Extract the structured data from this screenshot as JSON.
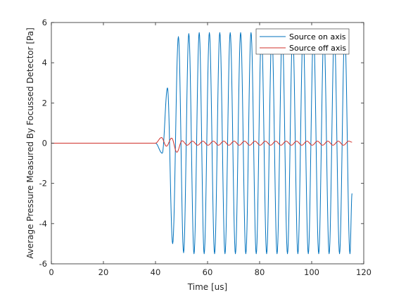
{
  "chart_data": {
    "type": "line",
    "title": "",
    "xlabel": "Time [us]",
    "ylabel": "Average Pressure Measured By Focussed Detector [Pa]",
    "xlim": [
      0,
      120
    ],
    "ylim": [
      -6,
      6
    ],
    "xticks": [
      0,
      20,
      40,
      60,
      80,
      100,
      120
    ],
    "yticks": [
      -6,
      -4,
      -2,
      0,
      2,
      4,
      6
    ],
    "grid": false,
    "legend_location": "top-right",
    "series": [
      {
        "name": "Source on axis",
        "color": "#0072BD",
        "signal": {
          "start_time": 40.0,
          "end_time": 115.5,
          "period": 4.0,
          "peak_times": [
            44.6,
            48.8,
            52.8,
            56.8,
            60.7,
            64.7,
            68.7,
            72.7,
            76.7,
            80.7,
            84.7,
            88.7,
            92.7,
            96.7,
            100.7,
            104.7,
            108.7,
            112.7
          ],
          "peak_values": [
            2.75,
            5.3,
            5.45,
            5.5,
            5.5,
            5.5,
            5.5,
            5.5,
            5.5,
            5.5,
            5.5,
            5.5,
            5.5,
            5.5,
            5.5,
            5.5,
            5.5,
            5.5
          ],
          "trough_times": [
            42.6,
            46.6,
            50.8,
            54.8,
            58.7,
            62.7,
            66.7,
            70.7,
            74.7,
            78.7,
            82.7,
            86.7,
            90.7,
            94.7,
            98.7,
            102.7,
            106.7,
            110.7,
            114.7
          ],
          "trough_values": [
            -0.5,
            -5.0,
            -5.45,
            -5.5,
            -5.5,
            -5.5,
            -5.5,
            -5.5,
            -5.5,
            -5.5,
            -5.5,
            -5.5,
            -5.5,
            -5.5,
            -5.5,
            -5.5,
            -5.5,
            -5.5,
            -5.5
          ],
          "final_time": 115.5,
          "final_value": -2.5
        }
      },
      {
        "name": "Source off axis",
        "color": "#D0302A",
        "signal": {
          "start_time": 40.0,
          "end_time": 115.5,
          "period": 4.0,
          "peak_times": [
            42.3,
            46.2,
            50.2,
            54.2,
            58.2,
            62.2,
            66.2,
            70.2,
            74.2,
            78.2,
            82.2,
            86.2,
            90.2,
            94.2,
            98.2,
            102.2,
            106.2,
            110.2,
            114.2
          ],
          "peak_values": [
            0.28,
            0.25,
            0.12,
            0.1,
            0.1,
            0.1,
            0.1,
            0.1,
            0.1,
            0.1,
            0.1,
            0.1,
            0.1,
            0.1,
            0.1,
            0.1,
            0.1,
            0.1,
            0.1
          ],
          "trough_times": [
            44.2,
            48.2,
            52.2,
            56.2,
            60.2,
            64.2,
            68.2,
            72.2,
            76.2,
            80.2,
            84.2,
            88.2,
            92.2,
            96.2,
            100.2,
            104.2,
            108.2,
            112.2
          ],
          "trough_values": [
            -0.15,
            -0.45,
            -0.1,
            -0.1,
            -0.1,
            -0.1,
            -0.1,
            -0.1,
            -0.1,
            -0.1,
            -0.1,
            -0.1,
            -0.1,
            -0.1,
            -0.1,
            -0.1,
            -0.1,
            -0.1
          ],
          "final_time": 115.5,
          "final_value": 0.05
        }
      }
    ]
  }
}
